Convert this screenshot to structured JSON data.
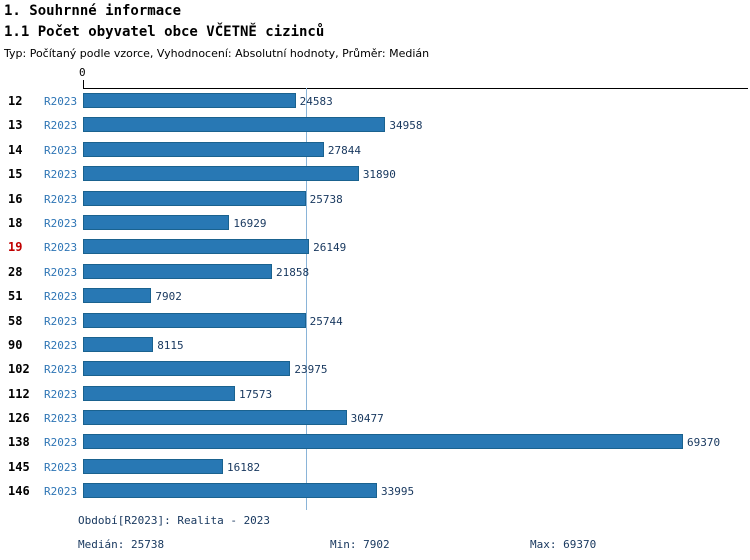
{
  "header": {
    "title1": "1. Souhrnné informace",
    "title2": "1.1 Počet obyvatel obce VČETNĚ cizinců",
    "subtitle": "Typ: Počítaný podle vzorce, Vyhodnocení: Absolutní hodnoty, Průměr: Medián"
  },
  "chart_data": {
    "type": "bar",
    "orientation": "horizontal",
    "title": "1.1 Počet obyvatel obce VČETNĚ cizinců",
    "x_axis": {
      "zero_label": "0",
      "xmax": 69370,
      "grid": false
    },
    "rows": [
      {
        "id": "12",
        "period": "R2023",
        "value": 24583,
        "highlight": false
      },
      {
        "id": "13",
        "period": "R2023",
        "value": 34958,
        "highlight": false
      },
      {
        "id": "14",
        "period": "R2023",
        "value": 27844,
        "highlight": false
      },
      {
        "id": "15",
        "period": "R2023",
        "value": 31890,
        "highlight": false
      },
      {
        "id": "16",
        "period": "R2023",
        "value": 25738,
        "highlight": false
      },
      {
        "id": "18",
        "period": "R2023",
        "value": 16929,
        "highlight": false
      },
      {
        "id": "19",
        "period": "R2023",
        "value": 26149,
        "highlight": true
      },
      {
        "id": "28",
        "period": "R2023",
        "value": 21858,
        "highlight": false
      },
      {
        "id": "51",
        "period": "R2023",
        "value": 7902,
        "highlight": false
      },
      {
        "id": "58",
        "period": "R2023",
        "value": 25744,
        "highlight": false
      },
      {
        "id": "90",
        "period": "R2023",
        "value": 8115,
        "highlight": false
      },
      {
        "id": "102",
        "period": "R2023",
        "value": 23975,
        "highlight": false
      },
      {
        "id": "112",
        "period": "R2023",
        "value": 17573,
        "highlight": false
      },
      {
        "id": "126",
        "period": "R2023",
        "value": 30477,
        "highlight": false
      },
      {
        "id": "138",
        "period": "R2023",
        "value": 69370,
        "highlight": false
      },
      {
        "id": "145",
        "period": "R2023",
        "value": 16182,
        "highlight": false
      },
      {
        "id": "146",
        "period": "R2023",
        "value": 33995,
        "highlight": false
      }
    ],
    "median_line_value": 25738,
    "colors": {
      "bar": "#2878b4",
      "bar_border": "#1a628f",
      "value_text": "#17375e",
      "period_text": "#2e75b5",
      "id_text": "#000000",
      "id_highlight": "#c00000",
      "median_line": "#8ab4d8"
    },
    "footer": {
      "period_label": "Období[R2023]: Realita - 2023",
      "median": "Medián: 25738",
      "min": "Min: 7902",
      "max": "Max: 69370"
    }
  }
}
